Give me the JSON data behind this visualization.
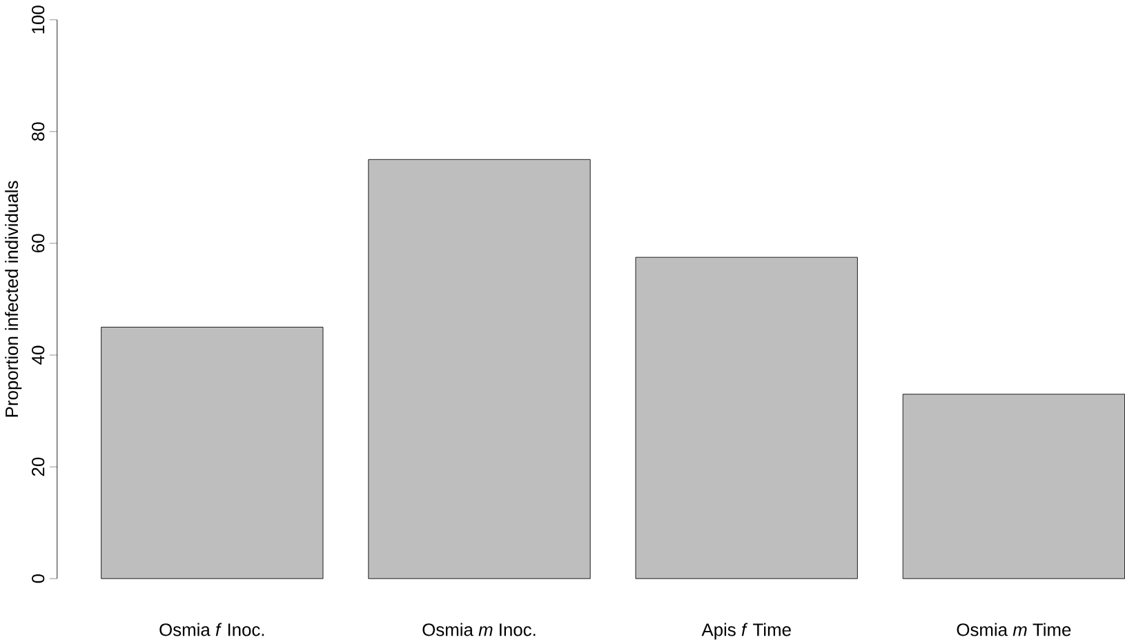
{
  "chart_data": {
    "type": "bar",
    "ylabel": "Proportion infected individuals",
    "categories": [
      "Osmia *f* Inoc.",
      "Osmia *m* Inoc.",
      "Apis *f* Time",
      "Osmia *m* Time"
    ],
    "values": [
      45,
      75,
      57.5,
      33
    ],
    "color": "#bebebe",
    "ylim": [
      0,
      100
    ],
    "yticks": [
      0,
      20,
      40,
      60,
      80,
      100
    ]
  }
}
